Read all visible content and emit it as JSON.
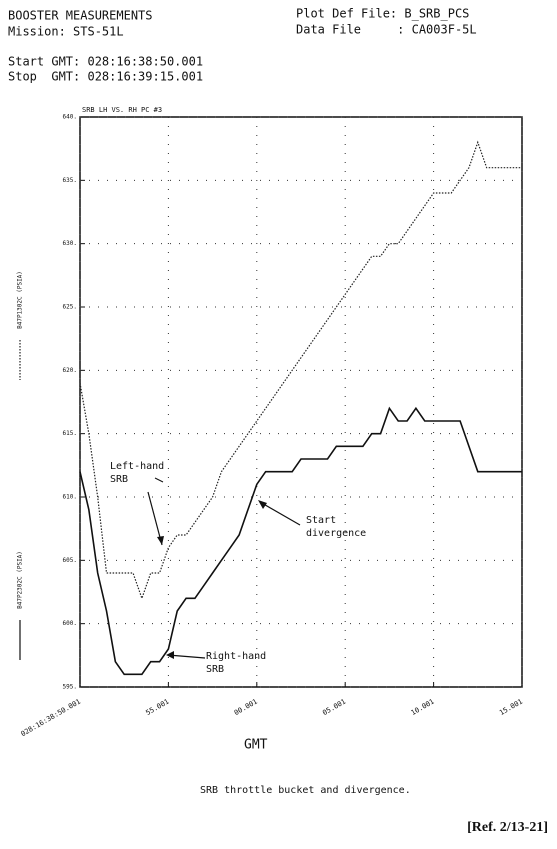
{
  "header": {
    "title": "BOOSTER MEASUREMENTS",
    "mission": "Mission: STS-51L",
    "start": "Start GMT: 028:16:38:50.001",
    "stop": "Stop  GMT: 028:16:39:15.001",
    "plot_def": "Plot Def File: B_SRB_PCS",
    "data_file": "Data File     : CA003F-5L"
  },
  "chart_data": {
    "type": "line",
    "title": "SRB LH VS. RH PC #3",
    "x_label": "GMT",
    "grid": true,
    "x": [
      0,
      0.5,
      1,
      1.5,
      2,
      2.5,
      3,
      3.5,
      4,
      4.5,
      5,
      5.5,
      6,
      6.5,
      7,
      7.5,
      8,
      8.5,
      9,
      9.5,
      10,
      10.5,
      11,
      11.5,
      12,
      12.5,
      13,
      13.5,
      14,
      14.5,
      15,
      15.5,
      16,
      16.5,
      17,
      17.5,
      18,
      18.5,
      19,
      19.5,
      20,
      20.5,
      21,
      21.5,
      22,
      22.5,
      23,
      23.5,
      24,
      24.5,
      25
    ],
    "series": [
      {
        "name": "B47P1302C (PSIA)",
        "color": "#222222",
        "style": "dotted",
        "values": [
          619,
          615,
          610,
          604,
          604,
          604,
          604,
          602,
          604,
          604,
          606,
          607,
          607,
          608,
          609,
          610,
          612,
          613,
          614,
          615,
          616,
          617,
          618,
          619,
          620,
          621,
          622,
          623,
          624,
          625,
          626,
          627,
          628,
          629,
          629,
          630,
          630,
          631,
          632,
          633,
          634,
          634,
          634,
          635,
          636,
          638,
          636,
          636,
          636,
          636,
          636
        ]
      },
      {
        "name": "B47P2302C (PSIA)",
        "color": "#111111",
        "style": "solid",
        "values": [
          612,
          609,
          604,
          601,
          597,
          596,
          596,
          596,
          597,
          597,
          598,
          601,
          602,
          602,
          603,
          604,
          605,
          606,
          607,
          609,
          611,
          612,
          612,
          612,
          612,
          613,
          613,
          613,
          613,
          614,
          614,
          614,
          614,
          615,
          615,
          617,
          616,
          616,
          617,
          616,
          616,
          616,
          616,
          616,
          614,
          612,
          612,
          612,
          612,
          612,
          612
        ]
      }
    ],
    "xlim": [
      0,
      25
    ],
    "xticks": [
      {
        "value": 0,
        "label": "028:16:38:50.001"
      },
      {
        "value": 5,
        "label": "55.001"
      },
      {
        "value": 10,
        "label": "00.001"
      },
      {
        "value": 15,
        "label": "05.001"
      },
      {
        "value": 20,
        "label": "10.001"
      },
      {
        "value": 25,
        "label": "15.001"
      }
    ],
    "ylim": [
      595,
      640
    ],
    "yticks": [
      {
        "value": 595,
        "label": "595."
      },
      {
        "value": 600,
        "label": "600."
      },
      {
        "value": 605,
        "label": "605."
      },
      {
        "value": 610,
        "label": "610."
      },
      {
        "value": 615,
        "label": "615."
      },
      {
        "value": 620,
        "label": "620."
      },
      {
        "value": 625,
        "label": "625."
      },
      {
        "value": 630,
        "label": "630."
      },
      {
        "value": 635,
        "label": "635."
      },
      {
        "value": 640,
        "label": "640."
      }
    ],
    "annotations": [
      [
        "Left-hand",
        "SRB"
      ],
      [
        "Start",
        "divergence"
      ],
      [
        "Right-hand",
        "SRB"
      ]
    ]
  },
  "caption": "SRB throttle bucket and divergence.",
  "reference": "[Ref. 2/13-21]"
}
